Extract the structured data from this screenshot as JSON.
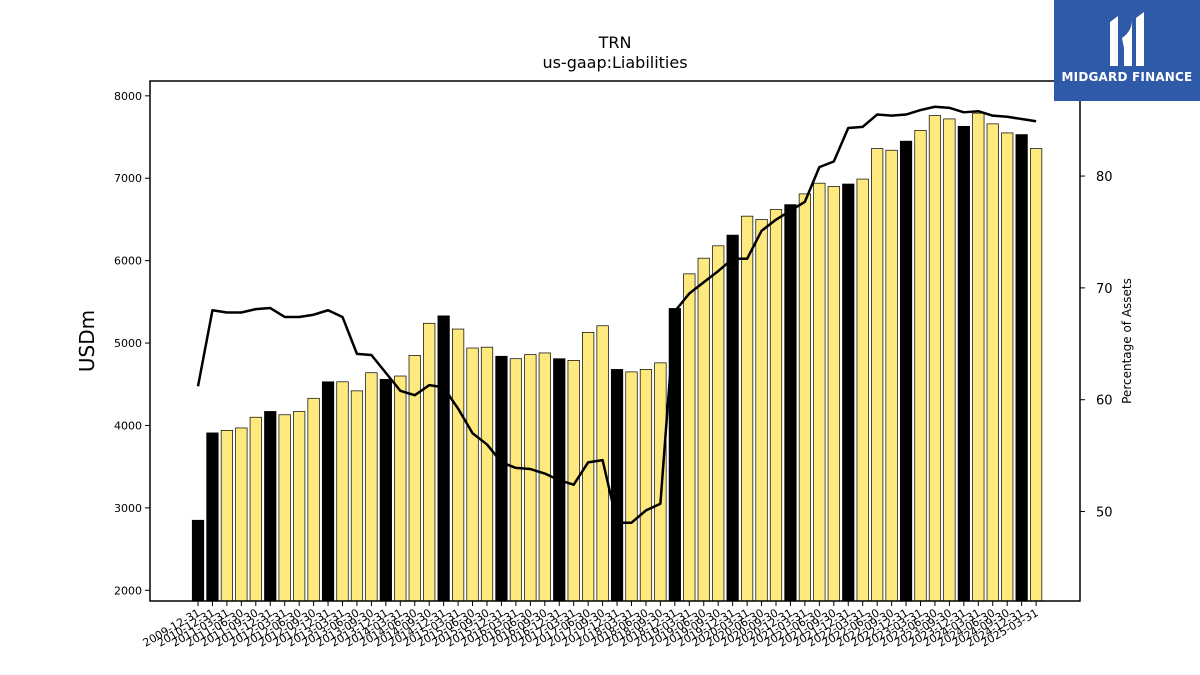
{
  "chart_data": {
    "type": "bar",
    "title": "TRN",
    "subtitle": "us-gaap:Liabilities",
    "ylabel": "USDm",
    "y2label": "Percentage of Assets",
    "ylim": [
      1870,
      8180
    ],
    "y2lim": [
      42,
      88.5
    ],
    "yticks": [
      2000,
      3000,
      4000,
      5000,
      6000,
      7000,
      8000
    ],
    "y2ticks": [
      50,
      60,
      70,
      80
    ],
    "grid": false,
    "legend": "none",
    "bar_colors": {
      "annual": "#000000",
      "quarterly": "#fde97e"
    },
    "line_color": "#000000",
    "categories": [
      "2009-12-31",
      "2010-12-31",
      "2011-03-31",
      "2011-06-30",
      "2011-09-30",
      "2011-12-31",
      "2012-03-31",
      "2012-06-30",
      "2012-09-30",
      "2012-12-31",
      "2013-03-31",
      "2013-06-30",
      "2013-09-30",
      "2013-12-31",
      "2014-03-31",
      "2014-06-30",
      "2014-09-30",
      "2014-12-31",
      "2015-03-31",
      "2015-06-30",
      "2015-09-30",
      "2015-12-31",
      "2016-03-31",
      "2016-06-30",
      "2016-09-30",
      "2016-12-31",
      "2017-03-31",
      "2017-06-30",
      "2017-09-30",
      "2017-12-31",
      "2018-03-31",
      "2018-06-30",
      "2018-09-30",
      "2018-12-31",
      "2019-03-31",
      "2019-06-30",
      "2019-09-30",
      "2019-12-31",
      "2020-03-31",
      "2020-06-30",
      "2020-09-30",
      "2020-12-31",
      "2021-03-31",
      "2021-06-30",
      "2021-09-30",
      "2021-12-31",
      "2022-03-31",
      "2022-06-30",
      "2022-09-30",
      "2022-12-31",
      "2023-03-31",
      "2023-06-30",
      "2023-09-30",
      "2023-12-31",
      "2024-03-31",
      "2024-06-30",
      "2024-09-30",
      "2024-12-31",
      "2025-03-31"
    ],
    "annual": [
      true,
      true,
      false,
      false,
      false,
      true,
      false,
      false,
      false,
      true,
      false,
      false,
      false,
      true,
      false,
      false,
      false,
      true,
      false,
      false,
      false,
      true,
      false,
      false,
      false,
      true,
      false,
      false,
      false,
      true,
      false,
      false,
      false,
      true,
      false,
      false,
      false,
      true,
      false,
      false,
      false,
      true,
      false,
      false,
      false,
      true,
      false,
      false,
      false,
      true,
      false,
      false,
      false,
      true,
      false,
      false,
      false,
      true,
      false
    ],
    "series": [
      {
        "type": "bar",
        "values": [
          2850,
          3910,
          3940,
          3970,
          4100,
          4170,
          4130,
          4170,
          4330,
          4530,
          4530,
          4420,
          4640,
          4560,
          4600,
          4850,
          5240,
          5330,
          5170,
          4940,
          4950,
          4840,
          4810,
          4860,
          4880,
          4810,
          4790,
          5130,
          5210,
          4680,
          4650,
          4680,
          4760,
          5420,
          5840,
          6030,
          6180,
          6310,
          6540,
          6500,
          6620,
          6680,
          6810,
          6940,
          6900,
          6930,
          6990,
          7360,
          7340,
          7450,
          7580,
          7760,
          7720,
          7630,
          7790,
          7660,
          7550,
          7530,
          7360
        ]
      },
      {
        "type": "line",
        "values": [
          61.2,
          68.0,
          67.8,
          67.8,
          68.1,
          68.2,
          67.4,
          67.4,
          67.6,
          68.0,
          67.4,
          64.1,
          64.0,
          62.4,
          60.8,
          60.4,
          61.3,
          61.1,
          59.2,
          57.0,
          56.0,
          54.4,
          53.9,
          53.8,
          53.4,
          52.8,
          52.4,
          54.4,
          54.6,
          49.0,
          49.0,
          50.1,
          50.7,
          67.9,
          69.5,
          70.5,
          71.5,
          72.6,
          72.6,
          75.1,
          76.1,
          76.9,
          77.7,
          80.8,
          81.3,
          84.3,
          84.4,
          85.5,
          85.4,
          85.5,
          85.9,
          86.2,
          86.1,
          85.7,
          85.8,
          85.4,
          85.3,
          85.1,
          84.9
        ]
      }
    ]
  },
  "logo": {
    "text": "MIDGARD FINANCE"
  }
}
